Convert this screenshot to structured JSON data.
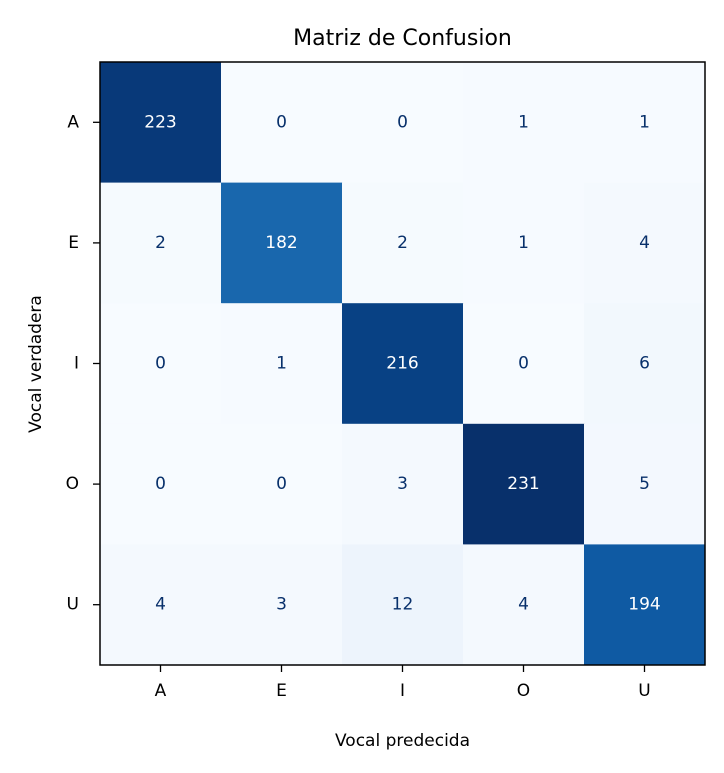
{
  "chart_data": {
    "type": "heatmap",
    "title": "Matriz de Confusion",
    "xlabel": "Vocal predecida",
    "ylabel": "Vocal verdadera",
    "x_categories": [
      "A",
      "E",
      "I",
      "O",
      "U"
    ],
    "y_categories": [
      "A",
      "E",
      "I",
      "O",
      "U"
    ],
    "values": [
      [
        223,
        0,
        0,
        1,
        1
      ],
      [
        2,
        182,
        2,
        1,
        4
      ],
      [
        0,
        1,
        216,
        0,
        6
      ],
      [
        0,
        0,
        3,
        231,
        5
      ],
      [
        4,
        3,
        12,
        4,
        194
      ]
    ],
    "colormap": "Blues",
    "vmin": 0,
    "vmax": 231,
    "colorbar": false,
    "grid": false
  }
}
